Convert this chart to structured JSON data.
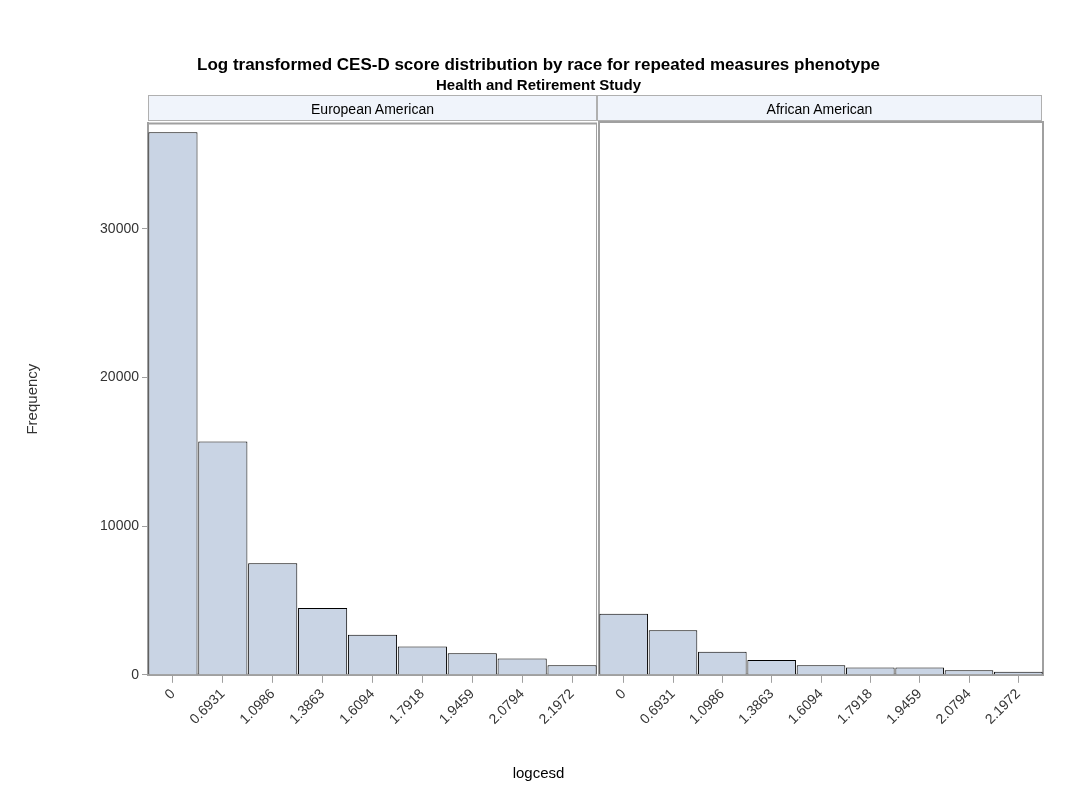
{
  "chart_data": [
    {
      "type": "bar",
      "title": "Log transformed CES-D score distribution by race for repeated measures phenotype",
      "subtitle": "Health and Retirement Study",
      "annotations": [
        "European American"
      ],
      "xlabel": "logcesd",
      "ylabel": "Frequency",
      "categories": [
        "0",
        "0.6931",
        "1.0986",
        "1.3863",
        "1.6094",
        "1.7918",
        "1.9459",
        "2.0794",
        "2.1972"
      ],
      "values": [
        36500,
        15700,
        7500,
        4500,
        2700,
        1900,
        1450,
        1100,
        650
      ],
      "color": "#c9d4e4",
      "ylim": [
        0,
        37100
      ],
      "yticks": [
        0,
        10000,
        20000,
        30000
      ]
    },
    {
      "type": "bar",
      "title": "African American",
      "categories": [
        "0",
        "0.6931",
        "1.0986",
        "1.3863",
        "1.6094",
        "1.7918",
        "1.9459",
        "2.0794",
        "2.1972"
      ],
      "values": [
        4100,
        3000,
        1550,
        1000,
        650,
        500,
        500,
        300,
        200
      ],
      "color": "#c9d4e4",
      "ylim": [
        0,
        37100
      ],
      "yticks": [
        0,
        10000,
        20000,
        30000
      ],
      "tick_labels": "x"
    }
  ]
}
